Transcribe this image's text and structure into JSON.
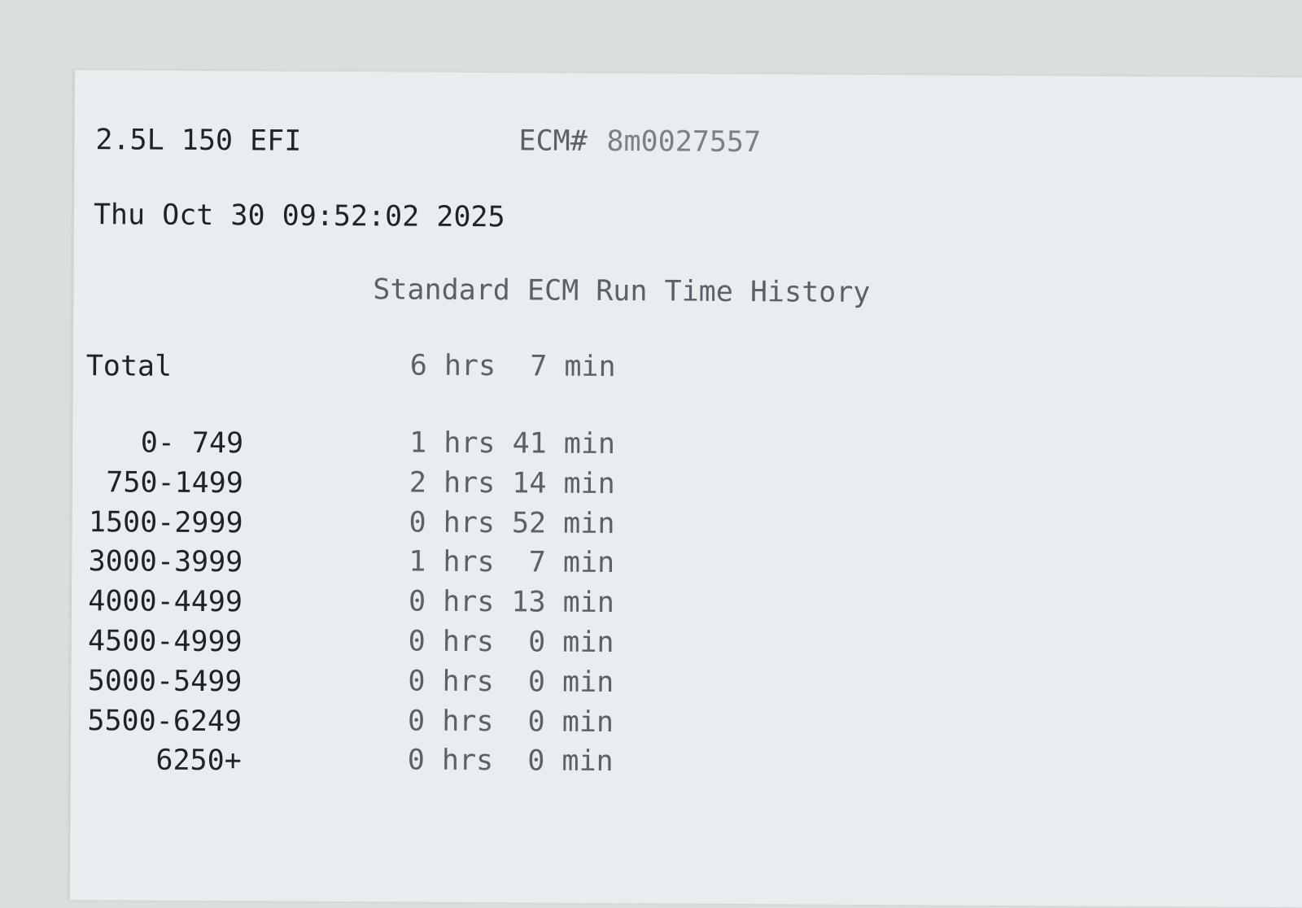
{
  "header": {
    "engine": "2.5L 150 EFI",
    "ecm_label": "ECM#",
    "ecm_number": "8m0027557",
    "datetime": "Thu Oct 30 09:52:02 2025",
    "title": "Standard ECM Run Time History"
  },
  "total": {
    "label": "Total",
    "value": "6 hrs  7 min"
  },
  "rows": [
    {
      "range": "0- 749",
      "value": "1 hrs 41 min"
    },
    {
      "range": "750-1499",
      "value": "2 hrs 14 min"
    },
    {
      "range": "1500-2999",
      "value": "0 hrs 52 min"
    },
    {
      "range": "3000-3999",
      "value": "1 hrs  7 min"
    },
    {
      "range": "4000-4499",
      "value": "0 hrs 13 min"
    },
    {
      "range": "4500-4999",
      "value": "0 hrs  0 min"
    },
    {
      "range": "5000-5499",
      "value": "0 hrs  0 min"
    },
    {
      "range": "5500-6249",
      "value": "0 hrs  0 min"
    },
    {
      "range": "6250+",
      "value": "0 hrs  0 min"
    }
  ]
}
